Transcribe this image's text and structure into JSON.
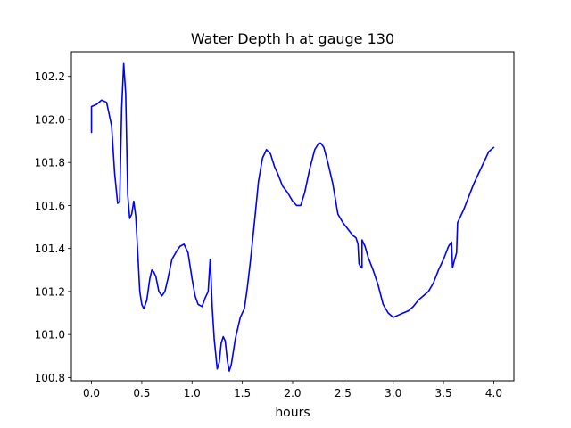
{
  "chart_data": {
    "type": "line",
    "title": "Water Depth h at gauge 130",
    "xlabel": "hours",
    "ylabel": "",
    "xlim": [
      -0.2,
      4.2
    ],
    "ylim": [
      100.785,
      102.315
    ],
    "grid": false,
    "x_ticks": [
      0.0,
      0.5,
      1.0,
      1.5,
      2.0,
      2.5,
      3.0,
      3.5,
      4.0
    ],
    "x_tick_labels": [
      "0.0",
      "0.5",
      "1.0",
      "1.5",
      "2.0",
      "2.5",
      "3.0",
      "3.5",
      "4.0"
    ],
    "y_ticks": [
      100.8,
      101.0,
      101.2,
      101.4,
      101.6,
      101.8,
      102.0,
      102.2
    ],
    "y_tick_labels": [
      "100.8",
      "101.0",
      "101.2",
      "101.4",
      "101.6",
      "101.8",
      "102.0",
      "102.2"
    ],
    "series": [
      {
        "color": "#0000ff",
        "x": [
          0.0,
          0.0,
          0.05,
          0.1,
          0.15,
          0.2,
          0.23,
          0.26,
          0.28,
          0.3,
          0.32,
          0.34,
          0.36,
          0.38,
          0.4,
          0.42,
          0.44,
          0.46,
          0.48,
          0.5,
          0.52,
          0.55,
          0.58,
          0.6,
          0.62,
          0.64,
          0.67,
          0.7,
          0.73,
          0.76,
          0.8,
          0.85,
          0.88,
          0.92,
          0.96,
          1.0,
          1.03,
          1.06,
          1.1,
          1.13,
          1.16,
          1.18,
          1.19,
          1.2,
          1.22,
          1.25,
          1.27,
          1.29,
          1.31,
          1.33,
          1.35,
          1.37,
          1.39,
          1.41,
          1.43,
          1.45,
          1.48,
          1.52,
          1.55,
          1.58,
          1.62,
          1.66,
          1.7,
          1.74,
          1.78,
          1.82,
          1.85,
          1.9,
          1.95,
          2.0,
          2.04,
          2.08,
          2.12,
          2.17,
          2.22,
          2.26,
          2.28,
          2.31,
          2.35,
          2.4,
          2.45,
          2.5,
          2.55,
          2.6,
          2.63,
          2.65,
          2.66,
          2.67,
          2.69,
          2.69,
          2.72,
          2.75,
          2.8,
          2.85,
          2.9,
          2.95,
          3.0,
          3.05,
          3.1,
          3.15,
          3.2,
          3.25,
          3.3,
          3.35,
          3.4,
          3.45,
          3.5,
          3.55,
          3.58,
          3.59,
          3.6,
          3.63,
          3.64,
          3.65,
          3.7,
          3.75,
          3.8,
          3.85,
          3.9,
          3.95,
          4.0
        ],
        "values": [
          101.94,
          102.06,
          102.07,
          102.09,
          102.08,
          101.97,
          101.75,
          101.61,
          101.62,
          102.05,
          102.26,
          102.12,
          101.65,
          101.54,
          101.56,
          101.62,
          101.55,
          101.38,
          101.2,
          101.14,
          101.12,
          101.16,
          101.26,
          101.3,
          101.29,
          101.27,
          101.2,
          101.18,
          101.2,
          101.26,
          101.35,
          101.39,
          101.41,
          101.42,
          101.38,
          101.26,
          101.18,
          101.14,
          101.13,
          101.17,
          101.2,
          101.35,
          101.25,
          101.13,
          100.98,
          100.84,
          100.87,
          100.96,
          100.99,
          100.97,
          100.88,
          100.83,
          100.86,
          100.92,
          100.98,
          101.02,
          101.08,
          101.12,
          101.22,
          101.34,
          101.52,
          101.71,
          101.82,
          101.86,
          101.84,
          101.78,
          101.75,
          101.69,
          101.66,
          101.62,
          101.6,
          101.6,
          101.66,
          101.77,
          101.86,
          101.89,
          101.89,
          101.87,
          101.8,
          101.7,
          101.56,
          101.52,
          101.49,
          101.46,
          101.45,
          101.42,
          101.33,
          101.32,
          101.31,
          101.44,
          101.41,
          101.36,
          101.3,
          101.23,
          101.14,
          101.1,
          101.08,
          101.09,
          101.1,
          101.11,
          101.13,
          101.16,
          101.18,
          101.2,
          101.24,
          101.3,
          101.35,
          101.41,
          101.43,
          101.31,
          101.33,
          101.38,
          101.52,
          101.53,
          101.58,
          101.64,
          101.7,
          101.75,
          101.8,
          101.85,
          101.87
        ]
      }
    ]
  }
}
